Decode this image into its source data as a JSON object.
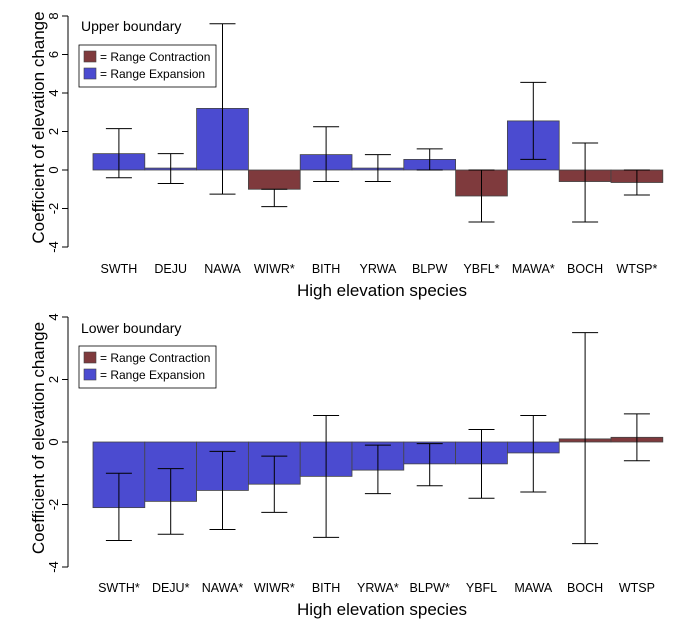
{
  "chart_data": [
    {
      "type": "bar",
      "title": "Upper boundary",
      "xlabel": "High elevation species",
      "ylabel": "Coefficient of elevation change",
      "ylim": [
        -4,
        8
      ],
      "yticks": [
        -4,
        -2,
        0,
        2,
        4,
        6,
        8
      ],
      "grid": false,
      "legend_position": "top-left",
      "legend": [
        {
          "label": "= Range Contraction",
          "color": "#7f3a3d"
        },
        {
          "label": "= Range Expansion",
          "color": "#4b4bd0"
        }
      ],
      "categories": [
        "SWTH",
        "DEJU",
        "NAWA",
        "WIWR*",
        "BITH",
        "YRWA",
        "BLPW",
        "YBFL*",
        "MAWA*",
        "BOCH",
        "WTSP*"
      ],
      "values": [
        0.85,
        0.1,
        3.2,
        -1.0,
        0.8,
        0.1,
        0.55,
        -1.35,
        2.55,
        -0.6,
        -0.65
      ],
      "error_low": [
        -0.4,
        -0.7,
        -1.25,
        -1.9,
        -0.6,
        -0.6,
        0.0,
        -2.7,
        0.55,
        -2.7,
        -1.3
      ],
      "error_high": [
        2.15,
        0.85,
        7.6,
        -1.0,
        2.25,
        0.8,
        1.1,
        0.0,
        4.55,
        1.4,
        0.0
      ],
      "bar_types": [
        "expansion",
        "expansion",
        "expansion",
        "contraction",
        "expansion",
        "expansion",
        "expansion",
        "contraction",
        "expansion",
        "contraction",
        "contraction"
      ]
    },
    {
      "type": "bar",
      "title": "Lower boundary",
      "xlabel": "High elevation species",
      "ylabel": "Coefficient of elevation change",
      "ylim": [
        -4,
        4
      ],
      "yticks": [
        -4,
        -2,
        0,
        2,
        4
      ],
      "grid": false,
      "legend_position": "top-left",
      "legend": [
        {
          "label": "= Range Contraction",
          "color": "#7f3a3d"
        },
        {
          "label": "= Range Expansion",
          "color": "#4b4bd0"
        }
      ],
      "categories": [
        "SWTH*",
        "DEJU*",
        "NAWA*",
        "WIWR*",
        "BITH",
        "YRWA*",
        "BLPW*",
        "YBFL",
        "MAWA",
        "BOCH",
        "WTSP"
      ],
      "values": [
        -2.1,
        -1.9,
        -1.55,
        -1.35,
        -1.1,
        -0.9,
        -0.7,
        -0.7,
        -0.35,
        0.1,
        0.15
      ],
      "error_low": [
        -3.15,
        -2.95,
        -2.8,
        -2.25,
        -3.05,
        -1.65,
        -1.4,
        -1.8,
        -1.6,
        -3.25,
        -0.6
      ],
      "error_high": [
        -1.0,
        -0.85,
        -0.3,
        -0.45,
        0.85,
        -0.1,
        -0.05,
        0.4,
        0.85,
        3.5,
        0.9
      ],
      "bar_types": [
        "expansion",
        "expansion",
        "expansion",
        "expansion",
        "expansion",
        "expansion",
        "expansion",
        "expansion",
        "expansion",
        "contraction",
        "contraction"
      ]
    }
  ],
  "colors": {
    "contraction": "#7f3a3d",
    "expansion": "#4b4bd0",
    "axis": "#000000"
  }
}
